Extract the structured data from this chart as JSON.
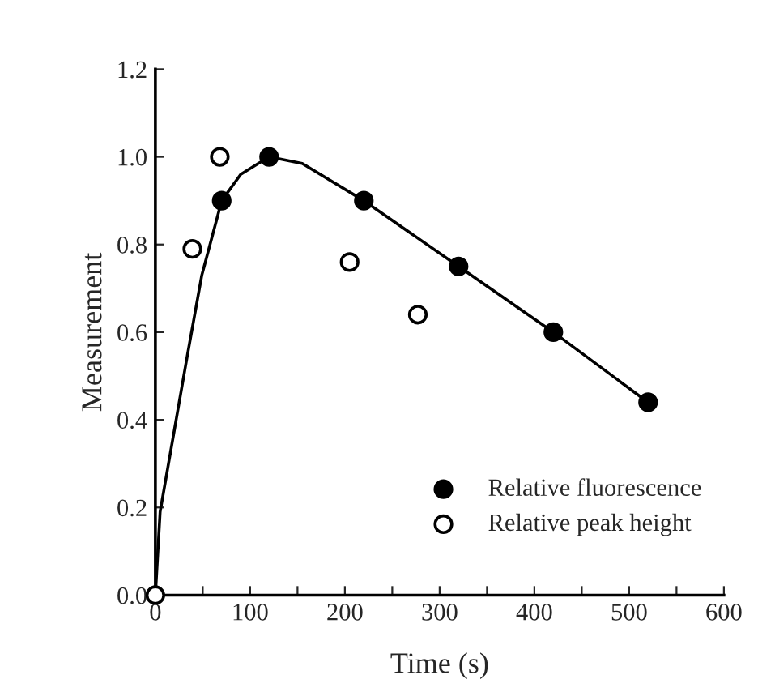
{
  "chart_data": {
    "type": "scatter",
    "xlabel": "Time (s)",
    "ylabel": "Measurement",
    "xlim": [
      0,
      600
    ],
    "ylim": [
      0,
      1.2
    ],
    "xticks": [
      0,
      {
        "value": 50,
        "label": null
      },
      100,
      {
        "value": 150,
        "label": null
      },
      200,
      {
        "value": 250,
        "label": null
      },
      300,
      {
        "value": 350,
        "label": null
      },
      400,
      {
        "value": 450,
        "label": null
      },
      500,
      {
        "value": 550,
        "label": null
      },
      600
    ],
    "yticks": [
      {
        "value": 0,
        "label": "0.0"
      },
      0.2,
      0.4,
      0.6,
      0.8,
      {
        "value": 1,
        "label": "1.0"
      },
      1.2
    ],
    "legend": "bottom right",
    "grid": false,
    "series": [
      {
        "type": "line",
        "color": "#000000",
        "marker": "none",
        "line_style": "solid",
        "x": [
          0,
          5,
          34,
          49,
          70,
          90,
          120,
          155,
          220,
          320,
          420,
          520
        ],
        "values": [
          0,
          0.19,
          0.55,
          0.73,
          0.9,
          0.96,
          1.0,
          0.985,
          0.9,
          0.75,
          0.6,
          0.44
        ]
      },
      {
        "name": "Relative fluorescence",
        "color": "#000000",
        "marker": "circle",
        "x": [
          70,
          120,
          220,
          320,
          420,
          520
        ],
        "values": [
          0.9,
          1.0,
          0.9,
          0.75,
          0.6,
          0.44
        ]
      },
      {
        "name": "Relative peak height",
        "color": "#ffffff",
        "marker": "circle",
        "x": [
          0,
          39,
          68,
          205,
          277
        ],
        "values": [
          0,
          0.79,
          1.0,
          0.76,
          0.64
        ]
      }
    ]
  }
}
